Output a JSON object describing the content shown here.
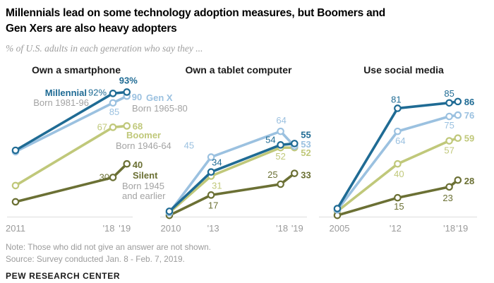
{
  "header": {
    "title_lines": [
      "Millennials lead on some technology adoption measures, but Boomers and",
      "Gen Xers are also heavy adopters"
    ],
    "subtitle": "% of U.S. adults in each generation who say they ..."
  },
  "footer": {
    "note": "Note: Those who did not give an answer are not shown.",
    "source": "Source: Survey conducted Jan. 8 - Feb. 7, 2019.",
    "brand": "PEW RESEARCH CENTER"
  },
  "colors": {
    "millennial": "#1f6b94",
    "genx": "#9bc1e0",
    "boomer": "#c0c87a",
    "silent": "#6b7034",
    "gray_label": "#a3a3a3",
    "axis": "#dcdcdc",
    "tick": "#9a9a9a",
    "panel_title": "#1a1a1a"
  },
  "chart_data": {
    "type": "line",
    "ylim": [
      0,
      100
    ],
    "grid": false,
    "legend_position": "inline-annotations",
    "panels": [
      {
        "title": "Own a smartphone",
        "x": [
          2011,
          2018,
          2019
        ],
        "x_tick_labels": [
          "2011",
          "'18",
          "'19"
        ],
        "series": [
          {
            "key": "boomer",
            "name": "Boomer",
            "sublabel": "Born 1946-64",
            "values": [
              24,
              67,
              68
            ],
            "point_labels": [
              "",
              "67",
              "68"
            ]
          },
          {
            "key": "silent",
            "name": "Silent",
            "sublabel": "Born 1945 and earlier",
            "values": [
              12,
              30,
              40
            ],
            "point_labels": [
              "",
              "30",
              "40"
            ]
          },
          {
            "key": "genx",
            "name": "Gen X",
            "sublabel": "Born 1965-80",
            "values": [
              49,
              85,
              90
            ],
            "point_labels": [
              "",
              "85",
              "90"
            ]
          },
          {
            "key": "millennial",
            "name": "Millennial",
            "sublabel": "Born 1981-96",
            "values": [
              50,
              92,
              93
            ],
            "point_labels": [
              "",
              "92%",
              "93%"
            ]
          }
        ],
        "annotations": [
          {
            "text": "Millennial",
            "color": "millennial",
            "bold": true
          },
          {
            "text": "Born 1981-96",
            "color": "gray"
          },
          {
            "text": "Gen X",
            "color": "genx",
            "bold": true
          },
          {
            "text": "Born 1965-80",
            "color": "gray"
          },
          {
            "text": "Boomer",
            "color": "boomer",
            "bold": true
          },
          {
            "text": "Born 1946-64",
            "color": "gray"
          },
          {
            "text": "Silent",
            "color": "silent",
            "bold": true
          },
          {
            "text": "Born 1945",
            "color": "gray"
          },
          {
            "text": "and earlier",
            "color": "gray"
          }
        ]
      },
      {
        "title": "Own a tablet computer",
        "x": [
          2010,
          2013,
          2018,
          2019
        ],
        "x_tick_labels": [
          "2010",
          "'13",
          "'18",
          "'19"
        ],
        "series": [
          {
            "key": "boomer",
            "name": "Boomer",
            "values": [
              4,
              31,
              52,
              52
            ],
            "point_labels": [
              "",
              "31",
              "52",
              "52"
            ]
          },
          {
            "key": "silent",
            "name": "Silent",
            "values": [
              2,
              17,
              25,
              33
            ],
            "point_labels": [
              "",
              "17",
              "25",
              "33"
            ]
          },
          {
            "key": "genx",
            "name": "Gen X",
            "values": [
              4,
              45,
              64,
              53
            ],
            "point_labels": [
              "",
              "45",
              "64",
              "53"
            ]
          },
          {
            "key": "millennial",
            "name": "Millennial",
            "values": [
              5,
              34,
              54,
              55
            ],
            "point_labels": [
              "",
              "34",
              "54",
              "55"
            ]
          }
        ],
        "annotations": []
      },
      {
        "title": "Use social media",
        "x": [
          2005,
          2012,
          2018,
          2019
        ],
        "x_tick_labels": [
          "2005",
          "'12",
          "'18",
          "'19"
        ],
        "series": [
          {
            "key": "boomer",
            "name": "Boomer",
            "values": [
              5,
              40,
              57,
              59
            ],
            "point_labels": [
              "",
              "40",
              "57",
              "59"
            ]
          },
          {
            "key": "silent",
            "name": "Silent",
            "values": [
              2,
              15,
              23,
              28
            ],
            "point_labels": [
              "",
              "15",
              "23",
              "28"
            ]
          },
          {
            "key": "genx",
            "name": "Gen X",
            "values": [
              6,
              64,
              75,
              76
            ],
            "point_labels": [
              "",
              "64",
              "75",
              "76"
            ]
          },
          {
            "key": "millennial",
            "name": "Millennial",
            "values": [
              7,
              81,
              85,
              86
            ],
            "point_labels": [
              "",
              "81",
              "85",
              "86"
            ]
          }
        ],
        "annotations": []
      }
    ]
  }
}
